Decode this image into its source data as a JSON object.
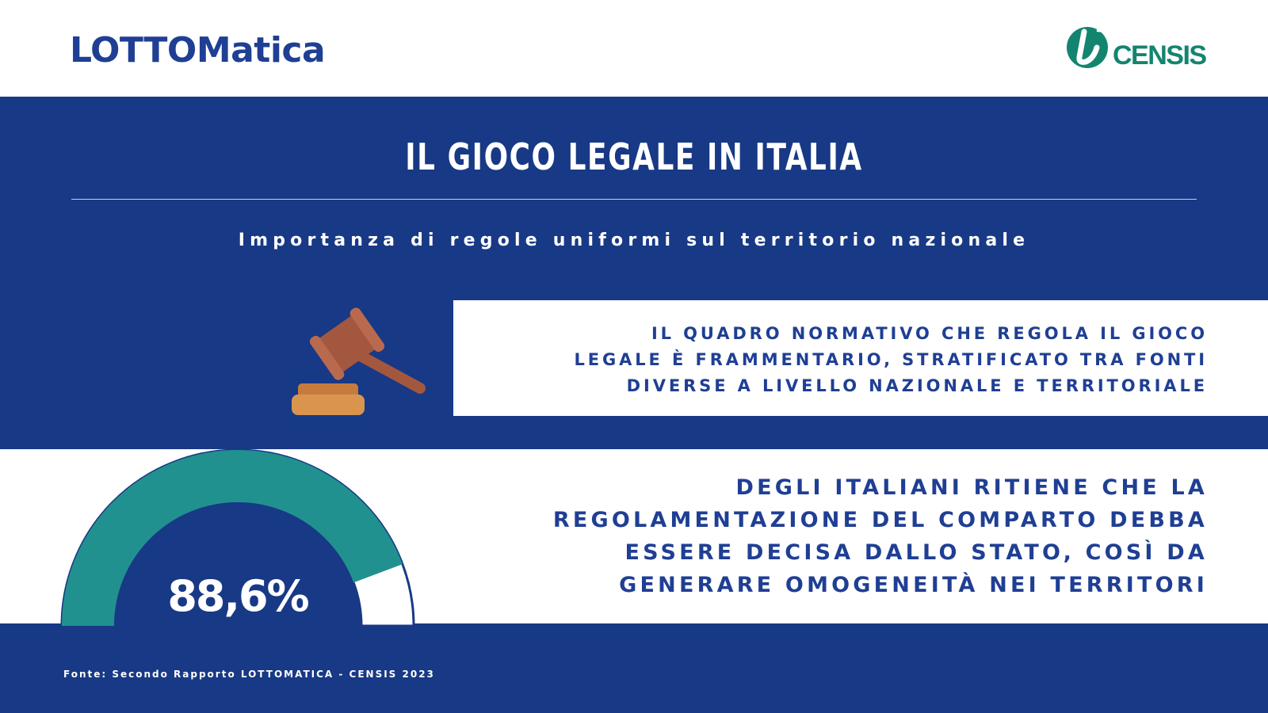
{
  "header": {
    "brand_left": "LOTTOMatica",
    "brand_right": "CENSIS"
  },
  "title": "IL GIOCO LEGALE IN ITALIA",
  "subtitle": "Importanza di regole uniformi sul territorio nazionale",
  "statement": {
    "icon": "gavel-icon",
    "lines": [
      "IL QUADRO NORMATIVO CHE REGOLA IL GIOCO",
      "LEGALE È FRAMMENTARIO, STRATIFICATO TRA FONTI",
      "DIVERSE A LIVELLO NAZIONALE E TERRITORIALE"
    ]
  },
  "stat": {
    "value_label": "88,6%",
    "value_fraction": 0.886,
    "lines": [
      "DEGLI ITALIANI RITIENE CHE LA",
      "REGOLAMENTAZIONE DEL COMPARTO DEBBA",
      "ESSERE DECISA DALLO STATO, COSÌ DA",
      "GENERARE OMOGENEITÀ NEI TERRITORI"
    ]
  },
  "source": "Fonte: Secondo Rapporto LOTTOMATICA - CENSIS 2023",
  "colors": {
    "background": "#183985",
    "text_blue": "#1f3f94",
    "gauge_fill": "#21918f",
    "censis_green": "#13856f",
    "gavel_brown": "#a4573f",
    "gavel_base": "#d9954e"
  }
}
